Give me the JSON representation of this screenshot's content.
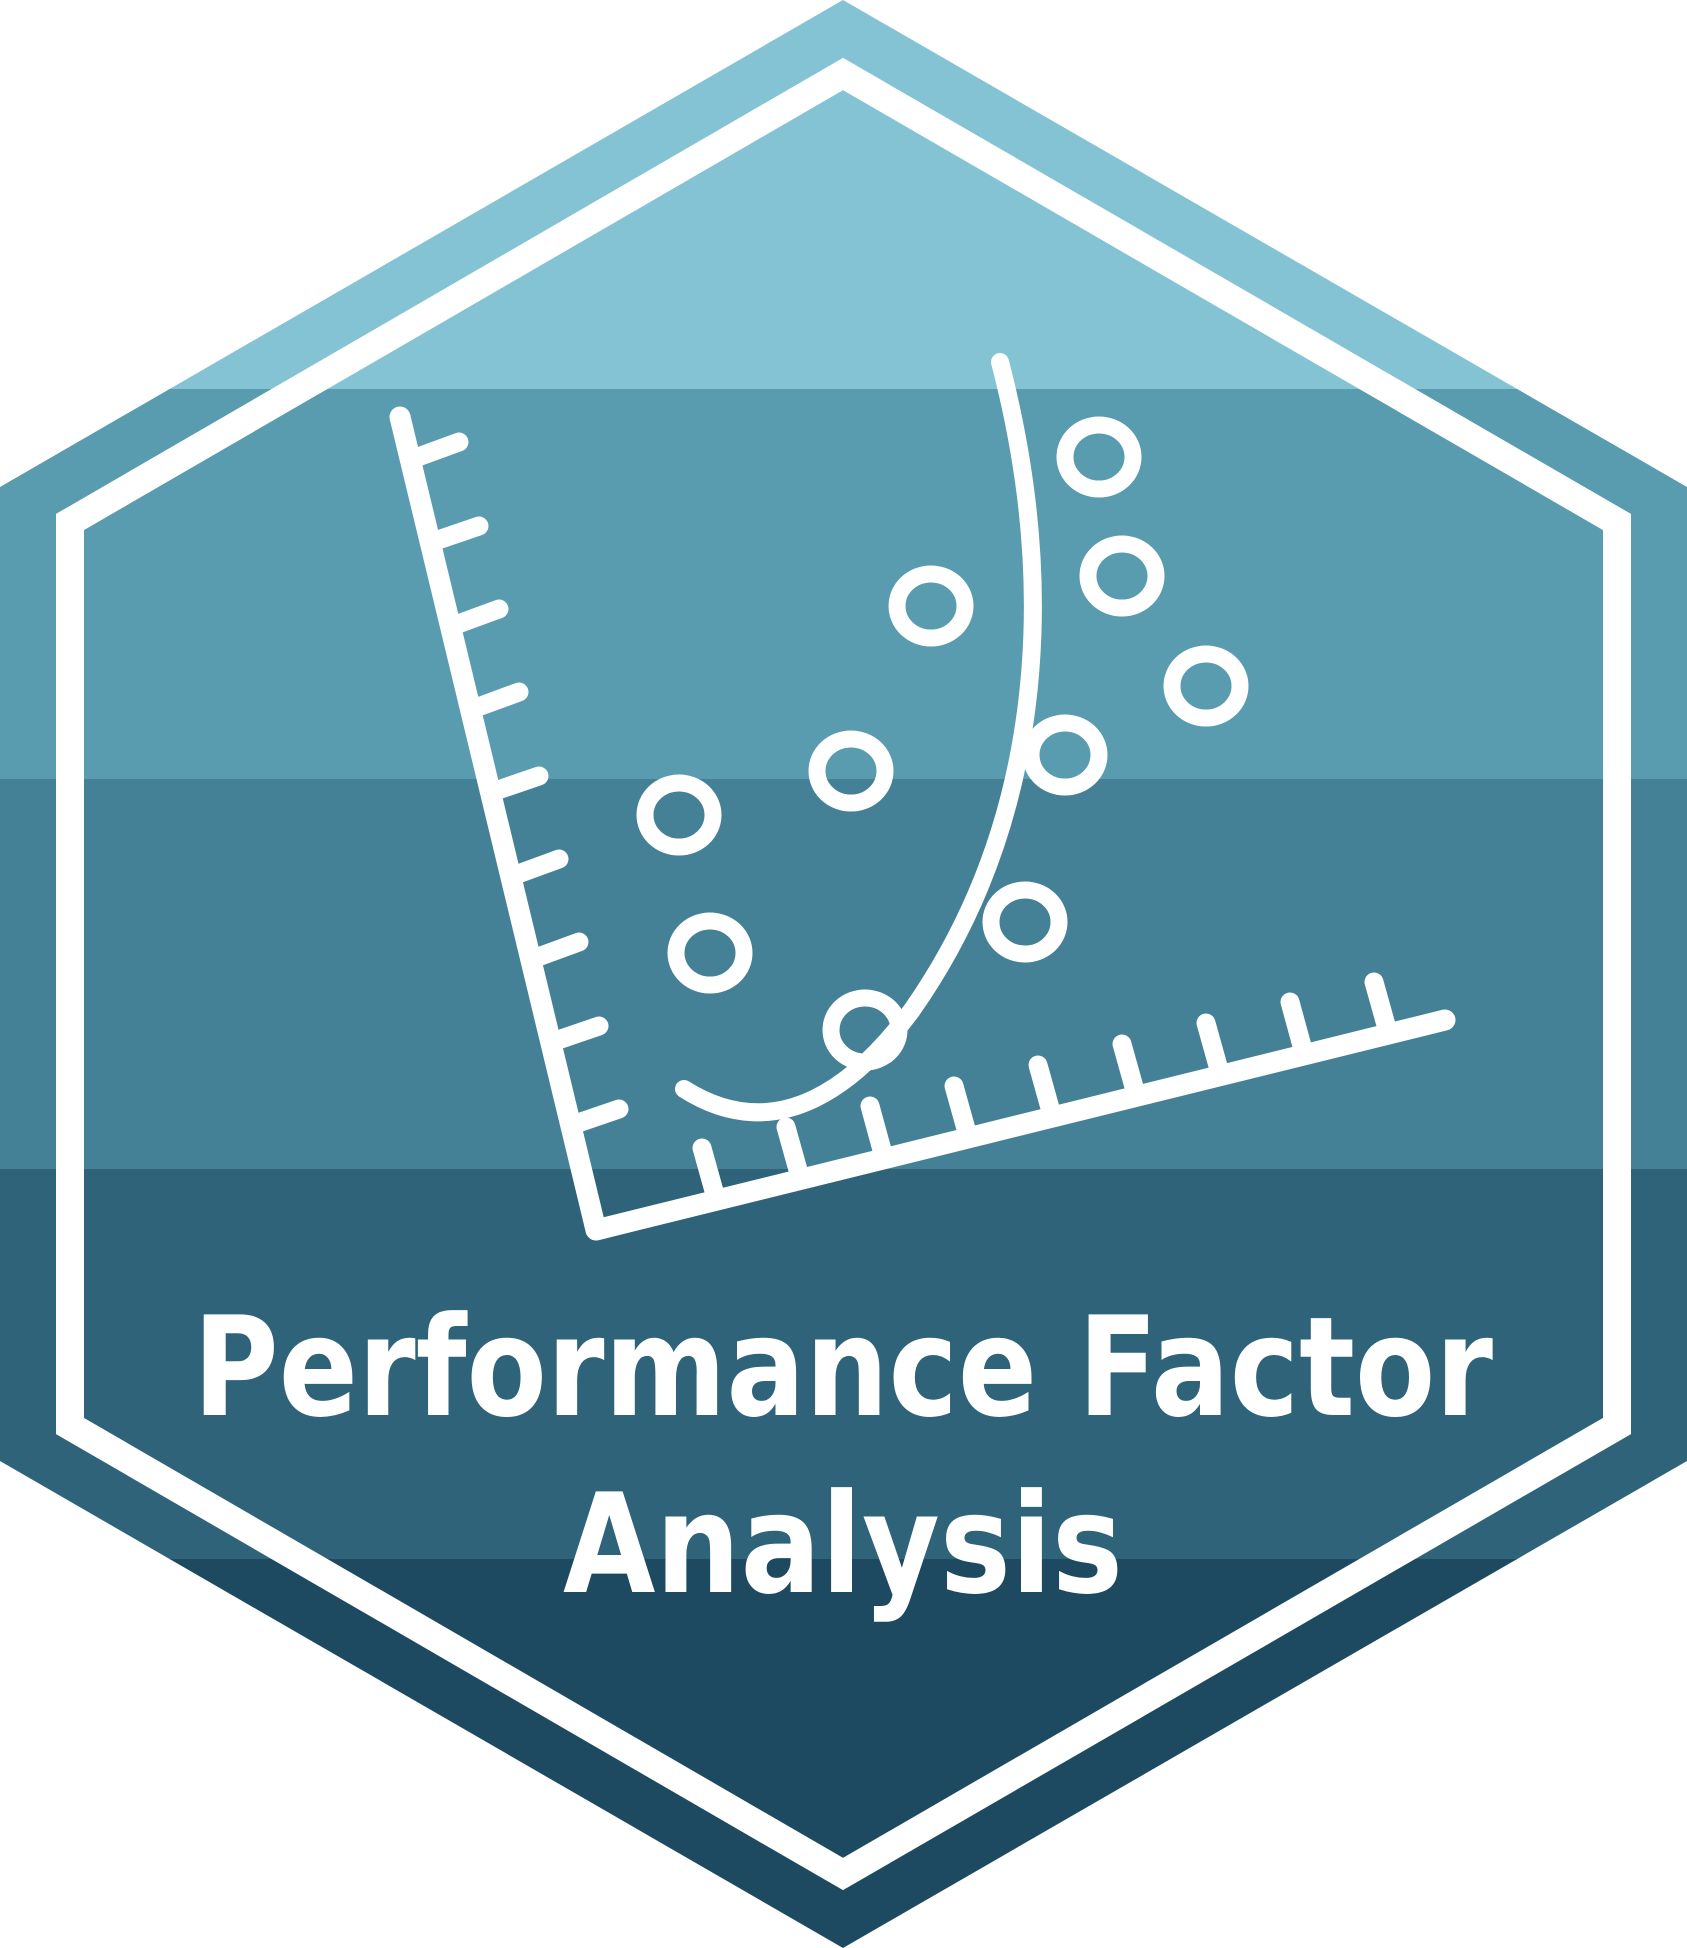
{
  "badge": {
    "title_line1": "Performance Factor",
    "title_line2": "Analysis",
    "icon": "scatter-plot-curve-icon",
    "colors": {
      "band1": "#83C3D3",
      "band2": "#599CB0",
      "band3": "#448196",
      "band4": "#2E6379",
      "band5": "#1E4A61",
      "stroke": "#ffffff"
    }
  }
}
